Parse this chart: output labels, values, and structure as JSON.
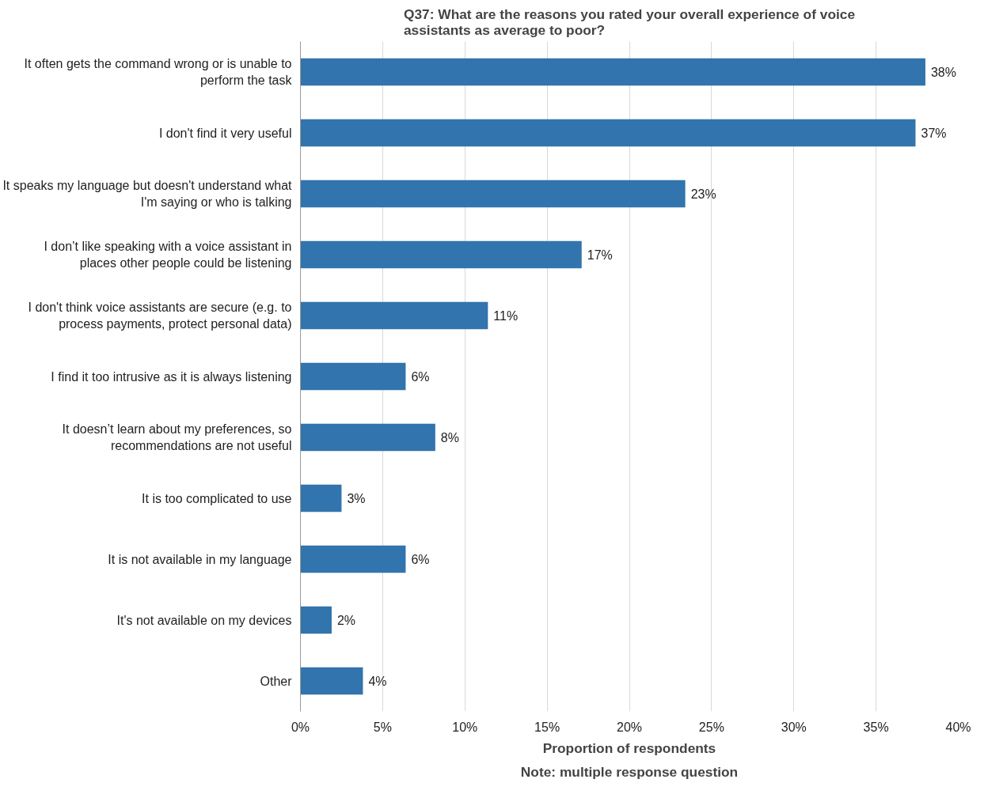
{
  "chart_data": {
    "type": "bar",
    "orientation": "horizontal",
    "title": "Q37: What are the reasons you rated your overall experience of voice assistants as average to poor?",
    "xlabel": "Proportion of respondents",
    "annotations": [
      "Note: multiple response question"
    ],
    "categories": [
      "It often gets the command wrong or is unable to perform the task",
      "I don't find it very useful",
      "It speaks my language but doesn't understand what I'm saying or who is talking",
      "I don’t like speaking with a voice assistant in places other people could be listening",
      "I don't think voice assistants are secure (e.g. to process payments, protect personal data)",
      "I find it too intrusive as it is always listening",
      "It doesn’t learn about my preferences, so recommendations are not useful",
      "It is too complicated to use",
      "It is not available in my language",
      "It's not available on my devices",
      "Other"
    ],
    "values": [
      38.0,
      37.4,
      23.4,
      17.1,
      11.4,
      6.4,
      8.2,
      2.5,
      6.4,
      1.9,
      3.8
    ],
    "value_labels": [
      "38%",
      "37%",
      "23%",
      "17%",
      "11%",
      "6%",
      "8%",
      "3%",
      "6%",
      "2%",
      "4%"
    ],
    "color": "#3274ad",
    "xlim": [
      0,
      40
    ],
    "xticks": [
      {
        "value": 0,
        "label": "0%"
      },
      {
        "value": 5,
        "label": "5%"
      },
      {
        "value": 10,
        "label": "10%"
      },
      {
        "value": 15,
        "label": "15%"
      },
      {
        "value": 20,
        "label": "20%"
      },
      {
        "value": 25,
        "label": "25%"
      },
      {
        "value": 30,
        "label": "30%"
      },
      {
        "value": 35,
        "label": "35%"
      },
      {
        "value": 40,
        "label": "40%"
      }
    ],
    "grid": "x"
  }
}
